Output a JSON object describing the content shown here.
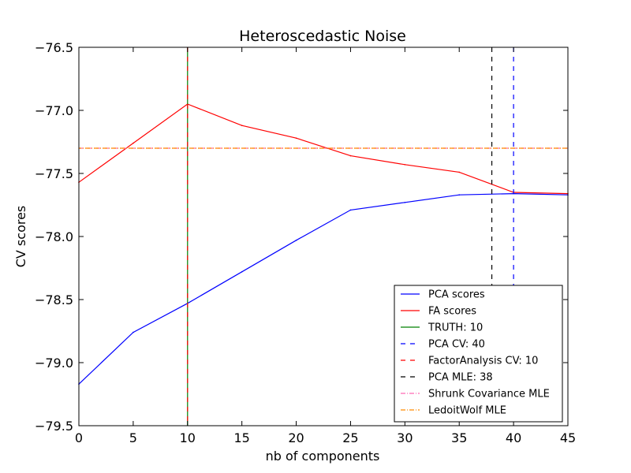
{
  "chart_data": {
    "type": "line",
    "title": "Heteroscedastic Noise",
    "xlabel": "nb of components",
    "ylabel": "CV scores",
    "xlim": [
      0,
      45
    ],
    "ylim": [
      -79.5,
      -76.5
    ],
    "xticks": [
      0,
      5,
      10,
      15,
      20,
      25,
      30,
      35,
      40,
      45
    ],
    "yticks": [
      -76.5,
      -77.0,
      -77.5,
      -78.0,
      -78.5,
      -79.0,
      -79.5
    ],
    "ytick_labels": [
      "−76.5",
      "−77.0",
      "−77.5",
      "−78.0",
      "−78.5",
      "−79.0",
      "−79.5"
    ],
    "grid": false,
    "legend_position": "lower-right",
    "series": [
      {
        "name": "PCA scores",
        "style": "solid",
        "color": "#0000ff",
        "x": [
          0,
          5,
          10,
          15,
          20,
          25,
          30,
          35,
          40,
          45
        ],
        "y": [
          -79.17,
          -78.76,
          -78.53,
          -78.28,
          -78.03,
          -77.79,
          -77.73,
          -77.67,
          -77.66,
          -77.67
        ]
      },
      {
        "name": "FA scores",
        "style": "solid",
        "color": "#ff0000",
        "x": [
          0,
          5,
          10,
          15,
          20,
          25,
          30,
          35,
          40,
          45
        ],
        "y": [
          -77.57,
          -77.26,
          -76.95,
          -77.12,
          -77.22,
          -77.36,
          -77.43,
          -77.49,
          -77.65,
          -77.66
        ]
      }
    ],
    "vlines": [
      {
        "name": "TRUTH: 10",
        "x": 10,
        "color": "#008000",
        "style": "solid"
      },
      {
        "name": "PCA CV: 40",
        "x": 40,
        "color": "#0000ff",
        "style": "dashed"
      },
      {
        "name": "FactorAnalysis CV: 10",
        "x": 10,
        "color": "#ff0000",
        "style": "dashed"
      },
      {
        "name": "PCA MLE: 38",
        "x": 38,
        "color": "#000000",
        "style": "dashed"
      }
    ],
    "hlines": [
      {
        "name": "Shrunk Covariance MLE",
        "y": -77.3,
        "color": "#ff69b4",
        "style": "dashdot"
      },
      {
        "name": "LedoitWolf MLE",
        "y": -77.3,
        "color": "#ff8c00",
        "style": "dashdot"
      }
    ]
  }
}
